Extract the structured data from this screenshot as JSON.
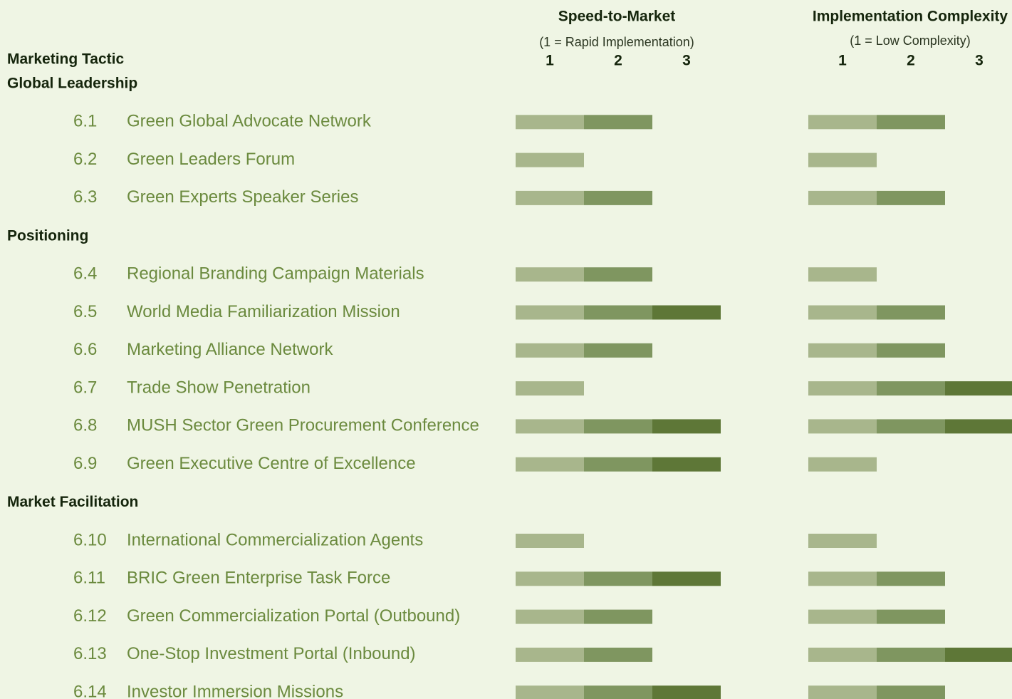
{
  "header": {
    "tactic_label": "Marketing Tactic"
  },
  "columns": [
    {
      "title": "Speed-to-Market",
      "subtitle": "(1 = Rapid Implementation)",
      "scale": [
        1,
        2,
        3
      ]
    },
    {
      "title": "Implementation Complexity",
      "subtitle": "(1 = Low Complexity)",
      "scale": [
        1,
        2,
        3
      ]
    }
  ],
  "colors": [
    "#a8b68c",
    "#7f9660",
    "#5e7737"
  ],
  "groups": [
    {
      "name": "Global Leadership",
      "rows": [
        {
          "id": "6.1",
          "name": "Green Global Advocate Network",
          "values": [
            2,
            2
          ]
        },
        {
          "id": "6.2",
          "name": "Green Leaders Forum",
          "values": [
            1,
            1
          ]
        },
        {
          "id": "6.3",
          "name": "Green Experts Speaker Series",
          "values": [
            2,
            2
          ]
        }
      ]
    },
    {
      "name": "Positioning",
      "rows": [
        {
          "id": "6.4",
          "name": "Regional Branding Campaign Materials",
          "values": [
            2,
            1
          ]
        },
        {
          "id": "6.5",
          "name": "World Media Familiarization Mission",
          "values": [
            3,
            2
          ]
        },
        {
          "id": "6.6",
          "name": "Marketing Alliance Network",
          "values": [
            2,
            2
          ]
        },
        {
          "id": "6.7",
          "name": "Trade Show Penetration",
          "values": [
            1,
            3
          ]
        },
        {
          "id": "6.8",
          "name": "MUSH Sector Green Procurement Conference",
          "values": [
            3,
            3
          ]
        },
        {
          "id": "6.9",
          "name": "Green Executive Centre of Excellence",
          "values": [
            3,
            1
          ]
        }
      ]
    },
    {
      "name": "Market Facilitation",
      "rows": [
        {
          "id": "6.10",
          "name": "International Commercialization Agents",
          "values": [
            1,
            1
          ]
        },
        {
          "id": "6.11",
          "name": "BRIC Green Enterprise Task Force",
          "values": [
            3,
            2
          ]
        },
        {
          "id": "6.12",
          "name": "Green Commercialization Portal (Outbound)",
          "values": [
            2,
            2
          ]
        },
        {
          "id": "6.13",
          "name": "One-Stop Investment Portal (Inbound)",
          "values": [
            2,
            3
          ]
        },
        {
          "id": "6.14",
          "name": "Investor Immersion Missions",
          "values": [
            3,
            2
          ]
        }
      ]
    }
  ]
}
